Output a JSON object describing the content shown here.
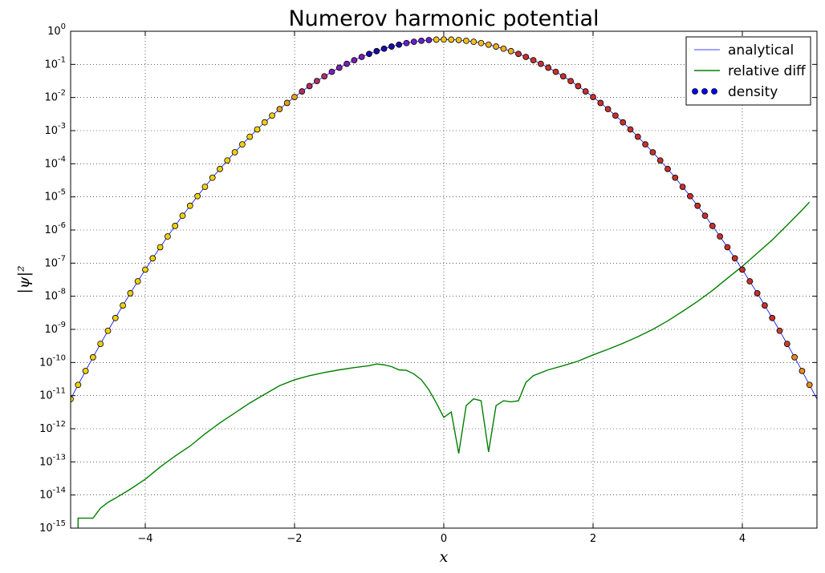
{
  "chart_data": {
    "type": "line",
    "title": "Numerov harmonic potential",
    "xlabel": "x",
    "ylabel": "|ψ|²",
    "xlim": [
      -5,
      5
    ],
    "ylim": [
      1e-15,
      1
    ],
    "yscale": "log",
    "grid": true,
    "legend_position": "top-right",
    "x_ticks": [
      -4,
      -2,
      0,
      2,
      4
    ],
    "x_tick_labels": [
      "−4",
      "−2",
      "0",
      "2",
      "4"
    ],
    "y_ticks": [
      {
        "value": 1,
        "base": "10",
        "exp": "0"
      },
      {
        "value": 0.1,
        "base": "10",
        "exp": "-1"
      },
      {
        "value": 0.01,
        "base": "10",
        "exp": "-2"
      },
      {
        "value": 0.001,
        "base": "10",
        "exp": "-3"
      },
      {
        "value": 0.0001,
        "base": "10",
        "exp": "-4"
      },
      {
        "value": 1e-05,
        "base": "10",
        "exp": "-5"
      },
      {
        "value": 1e-06,
        "base": "10",
        "exp": "-6"
      },
      {
        "value": 1e-07,
        "base": "10",
        "exp": "-7"
      },
      {
        "value": 1e-08,
        "base": "10",
        "exp": "-8"
      },
      {
        "value": 1e-09,
        "base": "10",
        "exp": "-9"
      },
      {
        "value": 1e-10,
        "base": "10",
        "exp": "-10"
      },
      {
        "value": 1e-11,
        "base": "10",
        "exp": "-11"
      },
      {
        "value": 1e-12,
        "base": "10",
        "exp": "-12"
      },
      {
        "value": 1e-13,
        "base": "10",
        "exp": "-13"
      },
      {
        "value": 1e-14,
        "base": "10",
        "exp": "-14"
      },
      {
        "value": 1e-15,
        "base": "10",
        "exp": "-15"
      }
    ],
    "series": [
      {
        "name": "analytical",
        "kind": "line",
        "color": "#0000ff",
        "function": "exp(-x^2)/sqrt(pi)",
        "x_range": [
          -5,
          5
        ]
      },
      {
        "name": "relative diff",
        "kind": "line",
        "color": "#008000",
        "points": [
          [
            -4.9,
            1e-15
          ],
          [
            -4.9,
            2e-15
          ],
          [
            -4.7,
            2e-15
          ],
          [
            -4.6,
            4e-15
          ],
          [
            -4.5,
            6e-15
          ],
          [
            -4.4,
            8e-15
          ],
          [
            -4.2,
            1.5e-14
          ],
          [
            -4.0,
            3e-14
          ],
          [
            -3.8,
            7e-14
          ],
          [
            -3.6,
            1.5e-13
          ],
          [
            -3.4,
            3e-13
          ],
          [
            -3.2,
            7e-13
          ],
          [
            -3.0,
            1.5e-12
          ],
          [
            -2.8,
            3e-12
          ],
          [
            -2.6,
            6e-12
          ],
          [
            -2.4,
            1.1e-11
          ],
          [
            -2.2,
            2e-11
          ],
          [
            -2.0,
            3e-11
          ],
          [
            -1.8,
            4e-11
          ],
          [
            -1.6,
            5e-11
          ],
          [
            -1.4,
            6e-11
          ],
          [
            -1.2,
            7e-11
          ],
          [
            -1.0,
            8e-11
          ],
          [
            -0.9,
            9e-11
          ],
          [
            -0.8,
            8.5e-11
          ],
          [
            -0.7,
            7.5e-11
          ],
          [
            -0.6,
            6e-11
          ],
          [
            -0.5,
            5.8e-11
          ],
          [
            -0.4,
            4.5e-11
          ],
          [
            -0.3,
            3e-11
          ],
          [
            -0.2,
            1.5e-11
          ],
          [
            -0.1,
            6e-12
          ],
          [
            0.0,
            2.2e-12
          ],
          [
            0.1,
            3.2e-12
          ],
          [
            0.2,
            1.8e-13
          ],
          [
            0.3,
            5e-12
          ],
          [
            0.4,
            8e-12
          ],
          [
            0.5,
            7e-12
          ],
          [
            0.6,
            2e-13
          ],
          [
            0.7,
            5e-12
          ],
          [
            0.8,
            7e-12
          ],
          [
            0.9,
            6.5e-12
          ],
          [
            1.0,
            7e-12
          ],
          [
            1.1,
            2.5e-11
          ],
          [
            1.2,
            4e-11
          ],
          [
            1.4,
            6e-11
          ],
          [
            1.6,
            8e-11
          ],
          [
            1.8,
            1.1e-10
          ],
          [
            2.0,
            1.7e-10
          ],
          [
            2.2,
            2.5e-10
          ],
          [
            2.4,
            3.8e-10
          ],
          [
            2.6,
            6e-10
          ],
          [
            2.8,
            1e-09
          ],
          [
            3.0,
            1.8e-09
          ],
          [
            3.2,
            3.5e-09
          ],
          [
            3.4,
            7e-09
          ],
          [
            3.6,
            1.5e-08
          ],
          [
            3.8,
            3.5e-08
          ],
          [
            4.0,
            8e-08
          ],
          [
            4.2,
            2e-07
          ],
          [
            4.4,
            5e-07
          ],
          [
            4.6,
            1.4e-06
          ],
          [
            4.8,
            4e-06
          ],
          [
            4.9,
            7e-06
          ]
        ]
      },
      {
        "name": "density",
        "kind": "scatter",
        "color": "#0000ff",
        "x_range": [
          -5,
          4.9
        ],
        "x_step": 0.1,
        "value_function": "exp(-x^2)/sqrt(pi)",
        "color_map": "blue at x=0, purple near center, red for x>0, yellow for x<0 and at edges"
      }
    ]
  }
}
